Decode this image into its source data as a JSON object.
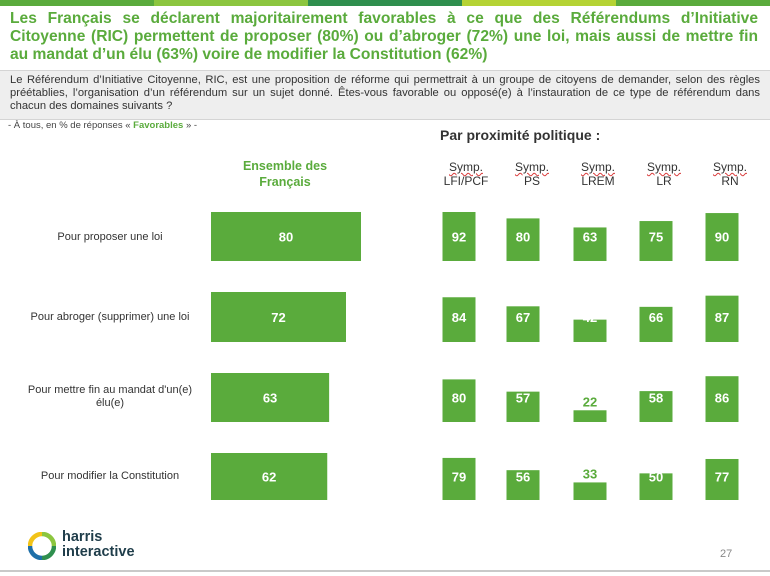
{
  "header": {
    "title": "Les Français se déclarent majoritairement favorables à ce que des Référendums d’Initiative Citoyenne (RIC) permettent de proposer (80%) ou d’abroger (72%) une loi, mais aussi de mettre fin au mandat d’un élu (63%) voire de modifier la Constitution (62%)",
    "intro": "Le Référendum d’Initiative Citoyenne, RIC, est une proposition de réforme qui permettrait à un groupe de citoyens de demander, selon des règles préétablies, l’organisation d’un référendum sur un sujet donné. Êtes-vous favorable ou opposé(e) à l’instauration de ce type de référendum dans chacun des domaines suivants ?",
    "base_prefix": "- À tous, en % de réponses « ",
    "base_highlight": "Favorables",
    "base_suffix": " » -"
  },
  "colors": {
    "accent": "#5aab3c",
    "bar": "#5aab3c",
    "lrem_bar": "#5aab3c",
    "strip": [
      "#5aab3c",
      "#8cc63f",
      "#2f8f4e",
      "#b5d334",
      "#5aab3c"
    ]
  },
  "chart_data": {
    "type": "bar",
    "title": "Par proximité politique :",
    "overall_label_line1": "Ensemble des",
    "overall_label_line2": "Français",
    "categories": [
      [
        "Pour proposer une loi"
      ],
      [
        "Pour abroger (supprimer) une loi"
      ],
      [
        "Pour mettre fin au mandat d'un(e)",
        "élu(e)"
      ],
      [
        "Pour modifier la Constitution"
      ]
    ],
    "overall": [
      80,
      72,
      63,
      62
    ],
    "groups": [
      {
        "line1": "Symp.",
        "line2": "LFI/PCF",
        "values": [
          92,
          84,
          80,
          79
        ]
      },
      {
        "line1": "Symp.",
        "line2": "PS",
        "values": [
          80,
          67,
          57,
          56
        ]
      },
      {
        "line1": "Symp.",
        "line2": "LREM",
        "values": [
          63,
          42,
          22,
          33
        ]
      },
      {
        "line1": "Symp.",
        "line2": "LR",
        "values": [
          75,
          66,
          58,
          50
        ]
      },
      {
        "line1": "Symp.",
        "line2": "RN",
        "values": [
          90,
          87,
          86,
          77
        ]
      }
    ],
    "ylim": [
      0,
      100
    ]
  },
  "footer": {
    "logo_line1": "harris",
    "logo_line2": "interactive",
    "page_number": "27"
  }
}
